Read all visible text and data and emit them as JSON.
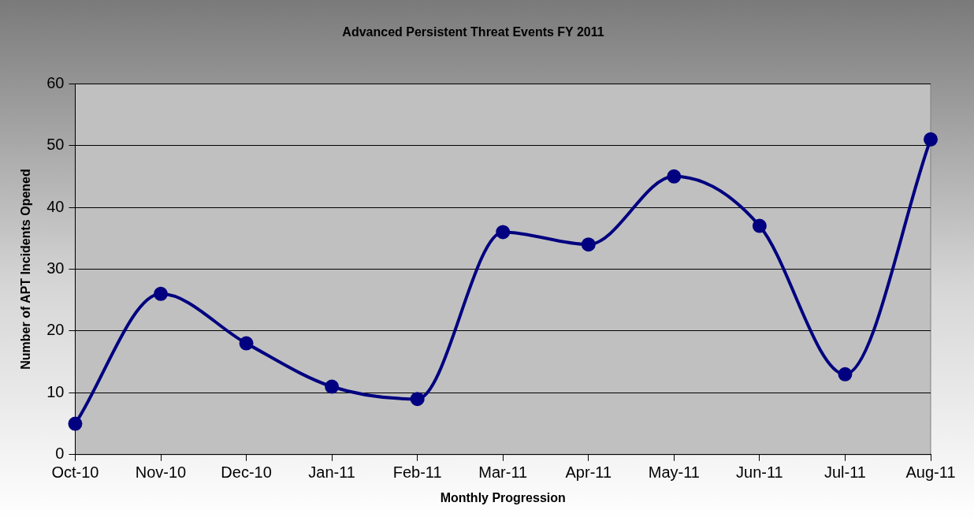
{
  "chart_data": {
    "type": "line",
    "title": "Advanced Persistent Threat Events FY 2011",
    "xlabel": "Monthly Progression",
    "ylabel": "Number of APT Incidents Opened",
    "categories": [
      "Oct-10",
      "Nov-10",
      "Dec-10",
      "Jan-11",
      "Feb-11",
      "Mar-11",
      "Apr-11",
      "May-11",
      "Jun-11",
      "Jul-11",
      "Aug-11"
    ],
    "series": [
      {
        "color": "#000080",
        "values": [
          5,
          26,
          18,
          11,
          9,
          36,
          34,
          45,
          37,
          13,
          51
        ]
      }
    ],
    "ylim": [
      0,
      60
    ],
    "yticks": [
      0,
      10,
      20,
      30,
      40,
      50,
      60
    ],
    "grid": "y",
    "legend": false,
    "marker": "circle",
    "line_style": "solid"
  }
}
